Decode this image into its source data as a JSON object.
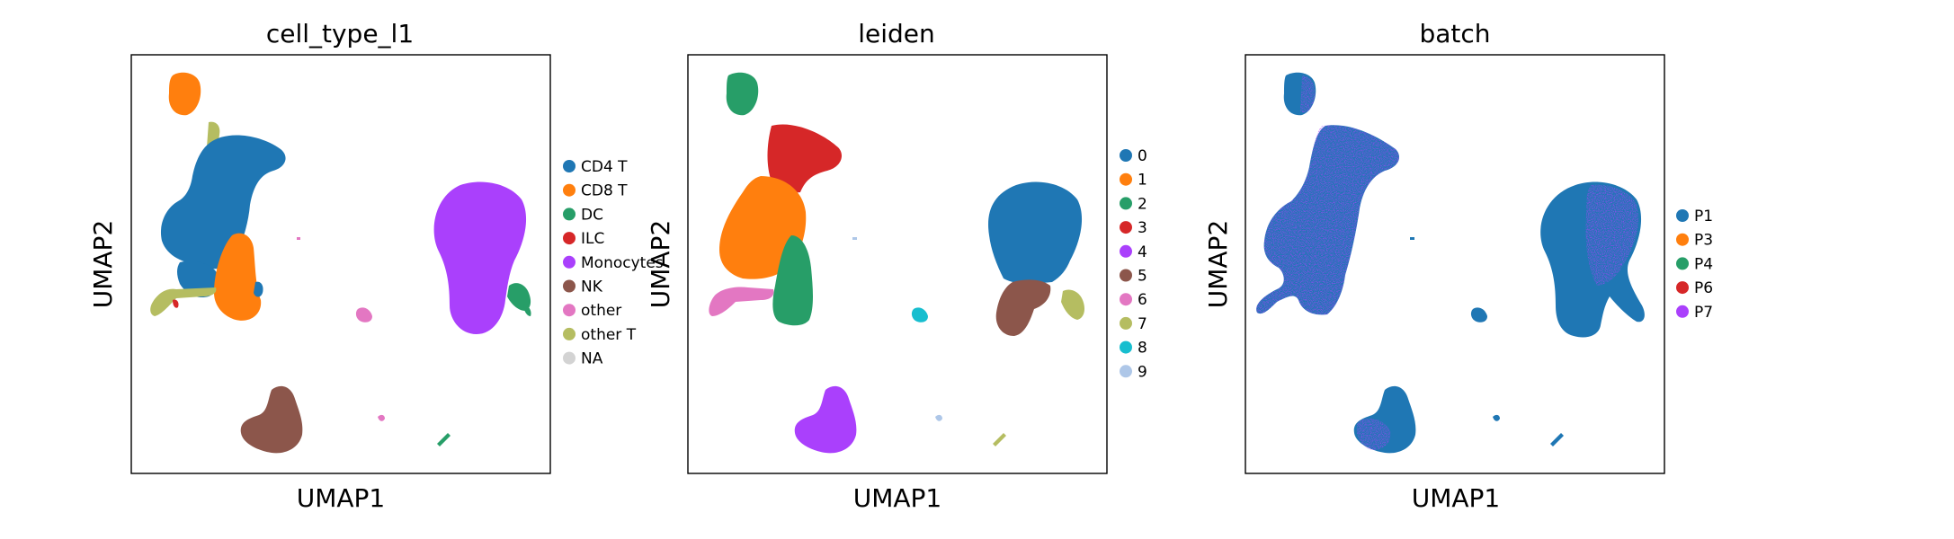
{
  "chart_data": [
    {
      "type": "scatter",
      "title": "cell_type_l1",
      "xlabel": "UMAP1",
      "ylabel": "UMAP2",
      "legend_position": "right",
      "legend": [
        {
          "label": "CD4 T",
          "color": "#1f77b4"
        },
        {
          "label": "CD8 T",
          "color": "#ff7f0e"
        },
        {
          "label": "DC",
          "color": "#279e68"
        },
        {
          "label": "ILC",
          "color": "#d62728"
        },
        {
          "label": "Monocytes",
          "color": "#aa40fc"
        },
        {
          "label": "NK",
          "color": "#8c564b"
        },
        {
          "label": "other",
          "color": "#e377c2"
        },
        {
          "label": "other T",
          "color": "#b5bd61"
        },
        {
          "label": "NA",
          "color": "#d3d3d3"
        }
      ]
    },
    {
      "type": "scatter",
      "title": "leiden",
      "xlabel": "UMAP1",
      "ylabel": "UMAP2",
      "legend_position": "right",
      "legend": [
        {
          "label": "0",
          "color": "#1f77b4"
        },
        {
          "label": "1",
          "color": "#ff7f0e"
        },
        {
          "label": "2",
          "color": "#279e68"
        },
        {
          "label": "3",
          "color": "#d62728"
        },
        {
          "label": "4",
          "color": "#aa40fc"
        },
        {
          "label": "5",
          "color": "#8c564b"
        },
        {
          "label": "6",
          "color": "#e377c2"
        },
        {
          "label": "7",
          "color": "#b5bd61"
        },
        {
          "label": "8",
          "color": "#17becf"
        },
        {
          "label": "9",
          "color": "#aec7e8"
        }
      ]
    },
    {
      "type": "scatter",
      "title": "batch",
      "xlabel": "UMAP1",
      "ylabel": "UMAP2",
      "legend_position": "right",
      "legend": [
        {
          "label": "P1",
          "color": "#1f77b4"
        },
        {
          "label": "P3",
          "color": "#ff7f0e"
        },
        {
          "label": "P4",
          "color": "#279e68"
        },
        {
          "label": "P6",
          "color": "#d62728"
        },
        {
          "label": "P7",
          "color": "#aa40fc"
        }
      ]
    }
  ]
}
